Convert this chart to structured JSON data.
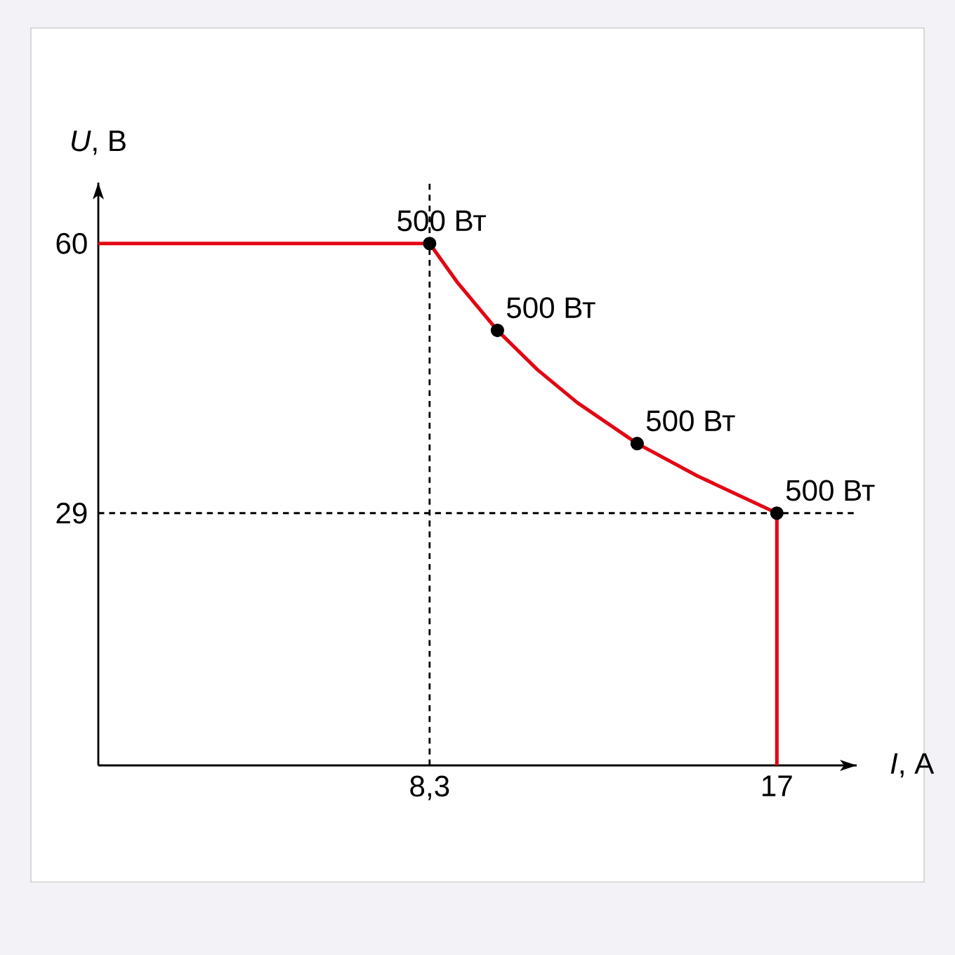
{
  "chart_data": {
    "type": "line",
    "xlabel": "*I*, А",
    "ylabel": "*U*, В",
    "xlim": [
      0,
      19
    ],
    "ylim": [
      0,
      67
    ],
    "xticks": [
      {
        "value": 8.3,
        "label": "8,3"
      },
      {
        "value": 17,
        "label": "17"
      }
    ],
    "yticks": [
      {
        "value": 29,
        "label": "29"
      },
      {
        "value": 60,
        "label": "60"
      }
    ],
    "series": [
      {
        "type": "line",
        "line_style": "solid",
        "color": "#e30613",
        "x": [
          0,
          8.3,
          9,
          10,
          11,
          12,
          13.5,
          15,
          17,
          17
        ],
        "values": [
          60,
          60,
          55.5,
          50,
          45.5,
          41.7,
          37,
          33.3,
          29,
          0
        ]
      },
      {
        "type": "scatter",
        "marker": "circle",
        "color": "#000000",
        "x": [
          8.3,
          10,
          13.5,
          17
        ],
        "values": [
          60,
          50,
          37,
          29
        ]
      }
    ],
    "ref_lines": [
      {
        "axis": "x",
        "value": 8.3,
        "line_style": "dashed",
        "color": "#000000"
      },
      {
        "axis": "y",
        "value": 29,
        "line_style": "dashed",
        "color": "#000000"
      }
    ],
    "annotations": [
      {
        "text": "500 Вт",
        "x": 8.3,
        "y": 60
      },
      {
        "text": "500 Вт",
        "x": 10,
        "y": 50
      },
      {
        "text": "500 Вт",
        "x": 13.5,
        "y": 37
      },
      {
        "text": "500 Вт",
        "x": 17,
        "y": 29
      }
    ]
  }
}
